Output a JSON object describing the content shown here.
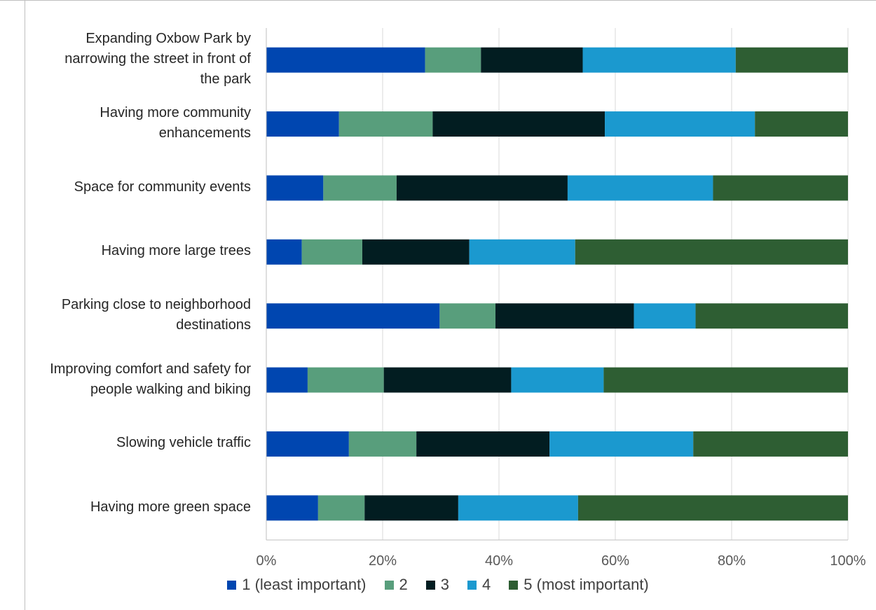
{
  "chart_data": {
    "type": "bar",
    "orientation": "horizontal",
    "stacked": "percent",
    "categories": [
      "Expanding Oxbow Park by narrowing the street in front of the park",
      "Having more community enhancements",
      "Space for community events",
      "Having more large trees",
      "Parking close to neighborhood destinations",
      "Improving comfort and safety for people walking and biking",
      "Slowing vehicle traffic",
      "Having more green space"
    ],
    "series": [
      {
        "name": "1 (least important)",
        "color": "#0046b0",
        "values": [
          27.3,
          12.5,
          9.8,
          6.1,
          29.8,
          7.1,
          14.2,
          8.9
        ]
      },
      {
        "name": "2",
        "color": "#589e7c",
        "values": [
          9.6,
          16.1,
          12.6,
          10.4,
          9.6,
          13.1,
          11.6,
          8.0
        ]
      },
      {
        "name": "3",
        "color": "#021d21",
        "values": [
          17.5,
          29.6,
          29.4,
          18.4,
          23.8,
          21.9,
          22.9,
          16.1
        ]
      },
      {
        "name": "4",
        "color": "#1b99cf",
        "values": [
          26.3,
          25.8,
          25.0,
          18.2,
          10.6,
          15.9,
          24.7,
          20.6
        ]
      },
      {
        "name": "5 (most important)",
        "color": "#2e5e33",
        "values": [
          19.3,
          16.0,
          23.2,
          46.9,
          26.2,
          42.0,
          26.6,
          46.4
        ]
      }
    ],
    "xticks": [
      "0%",
      "20%",
      "40%",
      "60%",
      "80%",
      "100%"
    ],
    "xlim": [
      0,
      100
    ],
    "grid": true,
    "legend_position": "bottom"
  },
  "category_lines": [
    [
      "Expanding Oxbow Park by",
      "narrowing the street in front of",
      "the park"
    ],
    [
      "Having more community",
      "enhancements"
    ],
    [
      "Space for community events"
    ],
    [
      "Having more large trees"
    ],
    [
      "Parking close to neighborhood",
      "destinations"
    ],
    [
      "Improving comfort and safety for",
      "people walking and biking"
    ],
    [
      "Slowing vehicle traffic"
    ],
    [
      "Having more green space"
    ]
  ]
}
